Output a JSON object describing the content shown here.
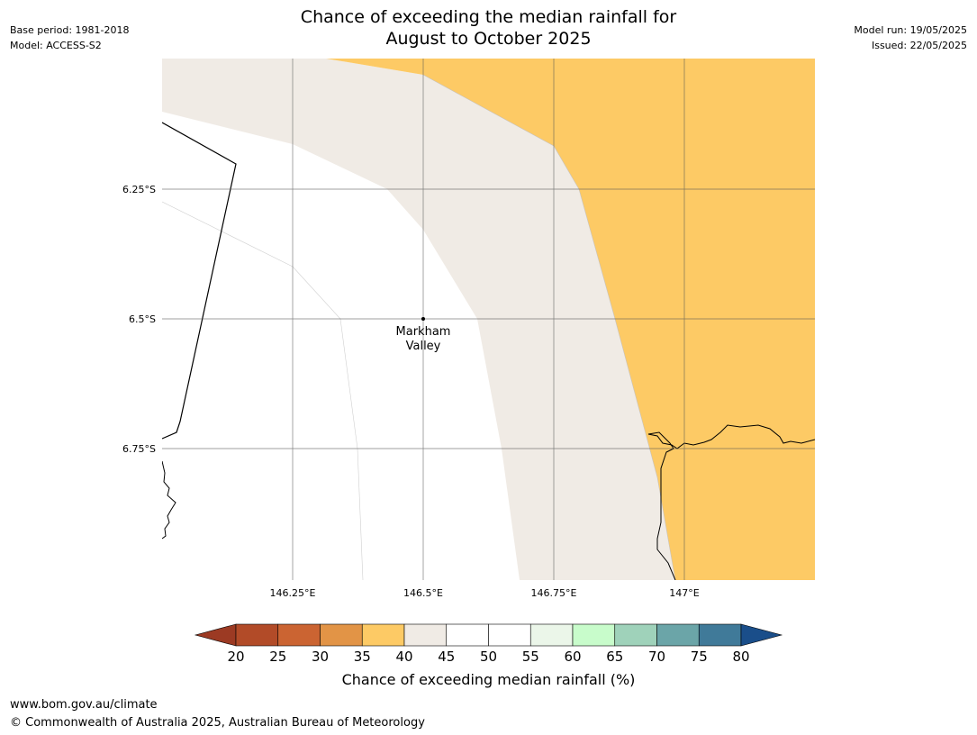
{
  "title_line1": "Chance of exceeding the median rainfall for",
  "title_line2": "August to October 2025",
  "meta_left": {
    "base_period": "Base period: 1981-2018",
    "model": "Model: ACCESS-S2"
  },
  "meta_right": {
    "model_run": "Model run: 19/05/2025",
    "issued": "Issued: 22/05/2025"
  },
  "map": {
    "lat_labels": [
      "6.25°S",
      "6.5°S",
      "6.75°S"
    ],
    "lon_labels": [
      "146.25°E",
      "146.5°E",
      "146.75°E",
      "147°E"
    ],
    "place_label": [
      "Markham",
      "Valley"
    ]
  },
  "colorbar": {
    "ticks": [
      "20",
      "25",
      "30",
      "35",
      "40",
      "45",
      "50",
      "55",
      "60",
      "65",
      "70",
      "75",
      "80"
    ],
    "colors": [
      "#9c3a23",
      "#b24b28",
      "#cb6432",
      "#e29446",
      "#fdca65",
      "#f0ebe5",
      "#ffffff",
      "#ffffff",
      "#ebf6e9",
      "#c8fccb",
      "#9fd2ba",
      "#6ba5a8",
      "#407a99",
      "#1a4e8a"
    ],
    "label": "Chance of exceeding median rainfall (%)"
  },
  "footer": {
    "url": "www.bom.gov.au/climate",
    "copyright": "© Commonwealth of Australia 2025, Australian Bureau of Meteorology"
  }
}
